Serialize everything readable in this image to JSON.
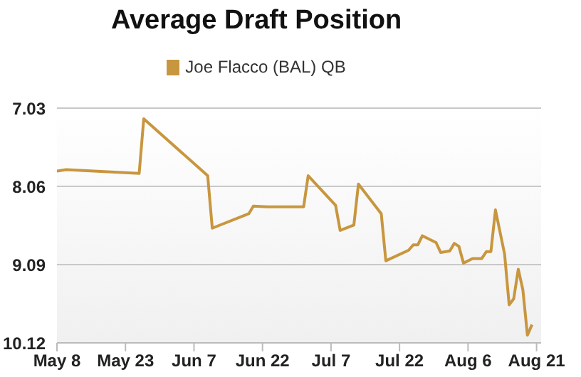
{
  "chart_data": {
    "type": "line",
    "title": "Average Draft Position",
    "x": [
      "--05-08",
      "--05-10",
      "--05-26",
      "--05-27",
      "--06-10",
      "--06-11",
      "--06-19",
      "--06-20",
      "--06-23",
      "--07-01",
      "--07-02",
      "--07-08",
      "--07-09",
      "--07-12",
      "--07-13",
      "--07-18",
      "--07-19",
      "--07-24",
      "--07-25",
      "--07-26",
      "--07-27",
      "--07-30",
      "--07-31",
      "--08-02",
      "--08-03",
      "--08-04",
      "--08-05",
      "--08-07",
      "--08-09",
      "--08-10",
      "--08-11",
      "--08-12",
      "--08-14",
      "--08-15",
      "--08-16",
      "--08-17",
      "--08-18",
      "--08-19",
      "--08-20"
    ],
    "series": [
      {
        "name": "Joe Flacco (BAL) QB",
        "color": "#c8963e",
        "values": [
          7.86,
          7.84,
          7.89,
          7.17,
          7.92,
          8.61,
          8.42,
          8.32,
          8.33,
          8.33,
          7.92,
          8.31,
          8.64,
          8.57,
          8.03,
          8.42,
          9.04,
          8.9,
          8.83,
          8.83,
          8.71,
          8.8,
          8.93,
          8.91,
          8.81,
          8.85,
          9.07,
          9.01,
          9.01,
          8.92,
          8.92,
          8.37,
          8.95,
          9.62,
          9.54,
          9.15,
          9.42,
          10.02,
          9.88
        ]
      }
    ],
    "xlim": [
      "--05-08",
      "--08-22"
    ],
    "xticks": [
      {
        "value": "--05-08",
        "label": "May 8"
      },
      {
        "value": "--05-23",
        "label": "May 23"
      },
      {
        "value": "--06-07",
        "label": "Jun 7"
      },
      {
        "value": "--06-22",
        "label": "Jun 22"
      },
      {
        "value": "--07-07",
        "label": "Jul 7"
      },
      {
        "value": "--07-22",
        "label": "Jul 22"
      },
      {
        "value": "--08-06",
        "label": "Aug 6"
      },
      {
        "value": "--08-21",
        "label": "Aug 21"
      }
    ],
    "ylim": [
      10.12,
      7.03
    ],
    "yticks": [
      7.03,
      8.06,
      9.09,
      10.12
    ],
    "grid": "y",
    "legend": "top",
    "marker": "none",
    "line_style": "solid"
  }
}
